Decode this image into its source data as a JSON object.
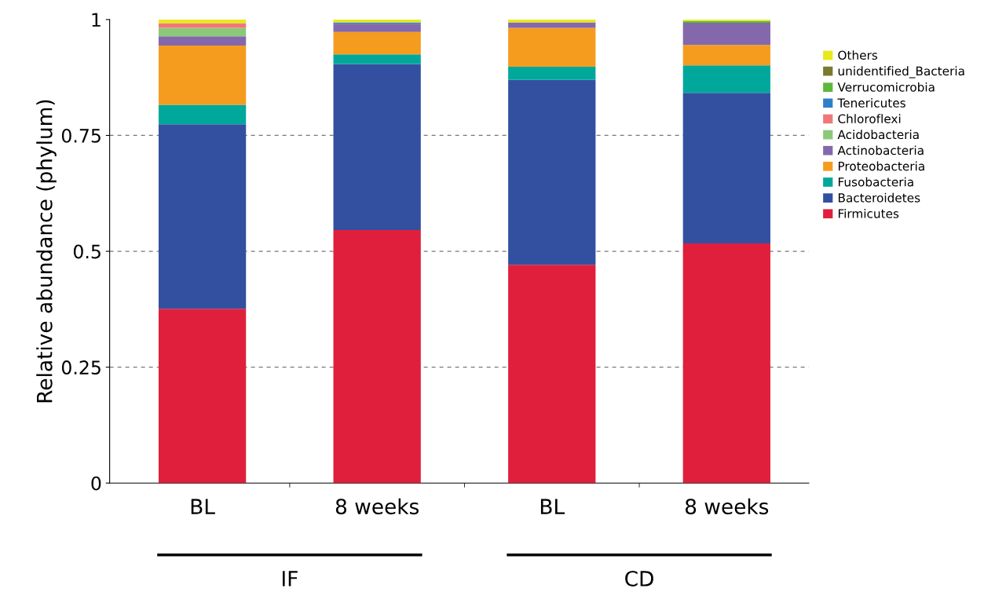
{
  "chart_data": {
    "type": "bar",
    "stacked": true,
    "ylabel": "Relative abundance (phylum)",
    "categories": [
      "BL",
      "8 weeks",
      "BL",
      "8 weeks"
    ],
    "series": [
      {
        "name": "Firmicutes",
        "color": "#e01f3c",
        "values": [
          0.376,
          0.546,
          0.471,
          0.517
        ]
      },
      {
        "name": "Bacteroidetes",
        "color": "#3350a0",
        "values": [
          0.398,
          0.358,
          0.399,
          0.325
        ]
      },
      {
        "name": "Fusobacteria",
        "color": "#00a89c",
        "values": [
          0.042,
          0.021,
          0.028,
          0.059
        ]
      },
      {
        "name": "Proteobacteria",
        "color": "#f59c1e",
        "values": [
          0.128,
          0.048,
          0.084,
          0.044
        ]
      },
      {
        "name": "Actinobacteria",
        "color": "#8468ac",
        "values": [
          0.02,
          0.018,
          0.012,
          0.048
        ]
      },
      {
        "name": "Acidobacteria",
        "color": "#8cc87a",
        "values": [
          0.018,
          0,
          0,
          0
        ]
      },
      {
        "name": "Chloroflexi",
        "color": "#f07878",
        "values": [
          0.01,
          0,
          0,
          0
        ]
      },
      {
        "name": "Tenericutes",
        "color": "#2f7fc8",
        "values": [
          0,
          0.003,
          0,
          0
        ]
      },
      {
        "name": "Verrucomicrobia",
        "color": "#5cb83c",
        "values": [
          0,
          0,
          0,
          0.004
        ]
      },
      {
        "name": "unidentified_Bacteria",
        "color": "#7a7a30",
        "values": [
          0,
          0,
          0,
          0
        ]
      },
      {
        "name": "Others",
        "color": "#e8e81a",
        "values": [
          0.008,
          0.006,
          0.006,
          0.003
        ]
      }
    ],
    "ylim": [
      0,
      1
    ],
    "yticks": [
      0,
      0.25,
      0.5,
      0.75,
      1
    ],
    "grid": "y",
    "legend": "right",
    "annotations": [
      "IF",
      "CD"
    ]
  }
}
